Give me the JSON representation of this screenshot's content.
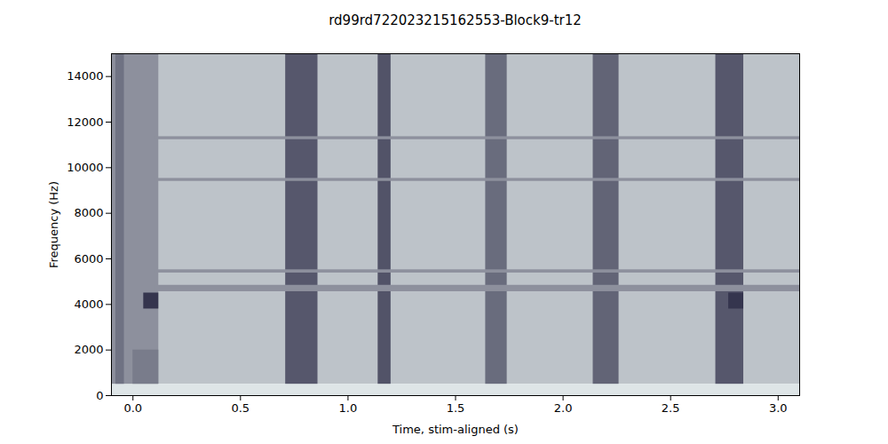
{
  "chart_data": {
    "type": "heatmap",
    "title": "rd99rd722023215162553-Block9-tr12",
    "x_label": "Time, stim-aligned (s)",
    "y_label": "Frequency (Hz)",
    "xlim": [
      -0.1,
      3.1
    ],
    "xticks": [
      {
        "value": 0,
        "label": "0.0"
      },
      0.5,
      {
        "value": 1,
        "label": "1.0"
      },
      1.5,
      {
        "value": 2,
        "label": "2.0"
      },
      2.5,
      {
        "value": 3,
        "label": "3.0"
      }
    ],
    "ylim": [
      0,
      15000
    ],
    "yticks": [
      0,
      2000,
      4000,
      6000,
      8000,
      10000,
      12000,
      14000
    ],
    "zlim": [
      0,
      1
    ],
    "cells": [
      {
        "t0": -0.1,
        "t1": 3.1,
        "f0": 500,
        "f1": 15000,
        "level": 0.25
      },
      {
        "t0": -0.1,
        "t1": 3.1,
        "f0": 0,
        "f1": 500,
        "level": 0.08
      },
      {
        "t0": -0.1,
        "t1": 0.12,
        "f0": 500,
        "f1": 15000,
        "level": 0.5
      },
      {
        "t0": -0.08,
        "t1": -0.04,
        "f0": 500,
        "f1": 15000,
        "level": 0.65
      },
      {
        "t0": 0.0,
        "t1": 0.12,
        "f0": 500,
        "f1": 2000,
        "level": 0.6
      },
      {
        "t0": 0.71,
        "t1": 0.86,
        "f0": 500,
        "f1": 15000,
        "level": 0.78
      },
      {
        "t0": 1.14,
        "t1": 1.2,
        "f0": 500,
        "f1": 15000,
        "level": 0.8
      },
      {
        "t0": 1.64,
        "t1": 1.74,
        "f0": 500,
        "f1": 15000,
        "level": 0.68
      },
      {
        "t0": 2.14,
        "t1": 2.26,
        "f0": 500,
        "f1": 15000,
        "level": 0.72
      },
      {
        "t0": 2.71,
        "t1": 2.84,
        "f0": 500,
        "f1": 15000,
        "level": 0.78
      },
      {
        "t0": 0.1,
        "t1": 3.1,
        "f0": 11230,
        "f1": 11360,
        "level": 0.5
      },
      {
        "t0": 0.1,
        "t1": 3.1,
        "f0": 9400,
        "f1": 9530,
        "level": 0.5
      },
      {
        "t0": 0.1,
        "t1": 3.1,
        "f0": 5380,
        "f1": 5520,
        "level": 0.5
      },
      {
        "t0": 0.1,
        "t1": 3.1,
        "f0": 4560,
        "f1": 4840,
        "level": 0.5
      },
      {
        "t0": 0.05,
        "t1": 0.12,
        "f0": 3800,
        "f1": 4500,
        "level": 0.95
      },
      {
        "t0": 2.77,
        "t1": 2.84,
        "f0": 3800,
        "f1": 4500,
        "level": 0.95
      }
    ]
  }
}
